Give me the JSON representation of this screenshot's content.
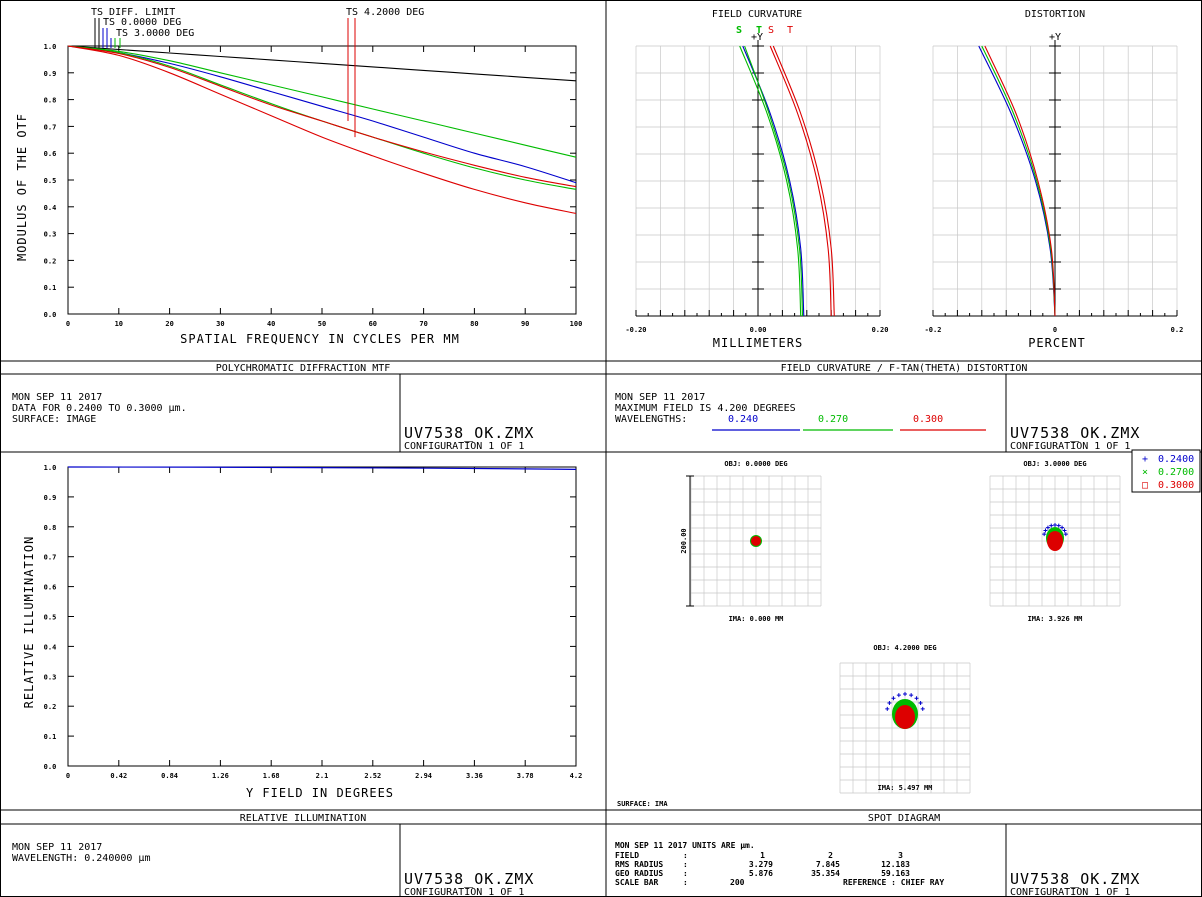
{
  "mtf_panel": {
    "title": "POLYCHROMATIC DIFFRACTION MTF",
    "ylabel": "MODULUS OF THE OTF",
    "xlabel": "SPATIAL FREQUENCY IN CYCLES PER MM",
    "legend": [
      "TS DIFF. LIMIT",
      "TS 0.0000 DEG",
      "TS 3.0000 DEG",
      "TS 4.2000 DEG"
    ],
    "info": [
      "MON SEP 11 2017",
      "DATA FOR 0.2400 TO 0.3000 µm.",
      "SURFACE: IMAGE"
    ],
    "file": "UV7538_OK.ZMX",
    "config": "CONFIGURATION 1 OF 1"
  },
  "fc_panel": {
    "title": "FIELD CURVATURE / F-TAN(THETA) DISTORTION",
    "fc_title": "FIELD CURVATURE",
    "dist_title": "DISTORTION",
    "fc_xlabel": "MILLIMETERS",
    "dist_xlabel": "PERCENT",
    "y_axis_label": "+Y",
    "fc_st_labels": [
      "S",
      "T",
      "S",
      "T"
    ],
    "info": [
      "MON SEP 11 2017",
      "MAXIMUM FIELD IS 4.200 DEGREES",
      "WAVELENGTHS:"
    ],
    "wavelengths": [
      "0.240",
      "0.270",
      "0.300"
    ],
    "file": "UV7538_OK.ZMX",
    "config": "CONFIGURATION 1 OF 1"
  },
  "ri_panel": {
    "title": "RELATIVE ILLUMINATION",
    "ylabel": "RELATIVE ILLUMINATION",
    "xlabel": "Y FIELD IN DEGREES",
    "info": [
      "MON SEP 11 2017",
      "WAVELENGTH: 0.240000 µm"
    ],
    "file": "UV7538_OK.ZMX",
    "config": "CONFIGURATION 1 OF 1"
  },
  "spot_panel": {
    "title": "SPOT DIAGRAM",
    "surface": "SURFACE: IMA",
    "scale_label": "200.00",
    "spots": [
      {
        "obj": "OBJ: 0.0000 DEG",
        "ima": "IMA: 0.000 MM"
      },
      {
        "obj": "OBJ: 3.0000 DEG",
        "ima": "IMA: 3.926 MM"
      },
      {
        "obj": "OBJ: 4.2000 DEG",
        "ima": "IMA: 5.497 MM"
      }
    ],
    "legend": [
      {
        "sym": "+",
        "label": "0.2400",
        "color": "#0000cc"
      },
      {
        "sym": "×",
        "label": "0.2700",
        "color": "#00bb00"
      },
      {
        "sym": "□",
        "label": "0.3000",
        "color": "#dd0000"
      }
    ],
    "info_line": "MON SEP 11 2017   UNITS ARE µm.",
    "table": [
      {
        "label": "FIELD",
        "values": [
          "1",
          "2",
          "3"
        ]
      },
      {
        "label": "RMS RADIUS",
        "values": [
          "3.279",
          "7.845",
          "12.183"
        ]
      },
      {
        "label": "GEO RADIUS",
        "values": [
          "5.876",
          "35.354",
          "59.163"
        ]
      }
    ],
    "scale_row": {
      "label": "SCALE BAR",
      "value": "200",
      "reference": "REFERENCE  : CHIEF RAY"
    },
    "file": "UV7538_OK.ZMX",
    "config": "CONFIGURATION 1 OF 1"
  },
  "colors": {
    "blue": "#0000cc",
    "green": "#00bb00",
    "red": "#dd0000",
    "black": "#000000"
  },
  "chart_data": [
    {
      "type": "line",
      "title": "POLYCHROMATIC DIFFRACTION MTF",
      "xlabel": "SPATIAL FREQUENCY IN CYCLES PER MM",
      "ylabel": "MODULUS OF THE OTF",
      "xlim": [
        0,
        100
      ],
      "ylim": [
        0,
        1
      ],
      "xticks": [
        "0",
        "10",
        "20",
        "30",
        "40",
        "50",
        "60",
        "70",
        "80",
        "90",
        "100"
      ],
      "yticks": [
        "0.0",
        "0.1",
        "0.2",
        "0.3",
        "0.4",
        "0.5",
        "0.6",
        "0.7",
        "0.8",
        "0.9",
        "1.0"
      ],
      "x": [
        0,
        10,
        20,
        30,
        40,
        50,
        60,
        70,
        80,
        90,
        100
      ],
      "series": [
        {
          "name": "TS DIFF. LIMIT",
          "color": "#000000",
          "values": [
            1.0,
            0.987,
            0.974,
            0.961,
            0.948,
            0.935,
            0.922,
            0.909,
            0.896,
            0.883,
            0.87
          ]
        },
        {
          "name": "TS 0.0000 DEG",
          "color": "#0000cc",
          "values": [
            1.0,
            0.975,
            0.935,
            0.885,
            0.83,
            0.775,
            0.72,
            0.66,
            0.6,
            0.55,
            0.49
          ]
        },
        {
          "color": "#00bb00",
          "values": [
            1.0,
            0.98,
            0.945,
            0.9,
            0.855,
            0.81,
            0.765,
            0.72,
            0.675,
            0.63,
            0.585
          ]
        },
        {
          "color": "#00bb00",
          "values": [
            1.0,
            0.975,
            0.925,
            0.855,
            0.785,
            0.72,
            0.66,
            0.6,
            0.545,
            0.5,
            0.465
          ]
        },
        {
          "name": "TS 3.0000 DEG",
          "color": "#dd0000",
          "values": [
            1.0,
            0.972,
            0.92,
            0.85,
            0.78,
            0.72,
            0.66,
            0.605,
            0.555,
            0.51,
            0.475
          ]
        },
        {
          "name": "TS 4.2000 DEG",
          "color": "#dd0000",
          "values": [
            1.0,
            0.965,
            0.9,
            0.82,
            0.74,
            0.66,
            0.59,
            0.525,
            0.465,
            0.415,
            0.375
          ]
        }
      ],
      "markers": [
        {
          "x": 55,
          "label": "TS 4.2000 DEG"
        }
      ]
    },
    {
      "type": "line",
      "title": "FIELD CURVATURE",
      "xlabel": "MILLIMETERS",
      "xlim": [
        -0.2,
        0.2
      ],
      "ylim": [
        0,
        4.2
      ],
      "xticks": [
        "-0.20",
        "0.00",
        "0.20"
      ],
      "y": [
        0,
        1.05,
        2.1,
        3.15,
        4.2
      ],
      "series": [
        {
          "name": "S",
          "color": "#0000cc",
          "x": [
            0.075,
            0.07,
            0.052,
            0.02,
            -0.025
          ]
        },
        {
          "color": "#00bb00",
          "x": [
            0.07,
            0.065,
            0.047,
            0.015,
            -0.03
          ]
        },
        {
          "color": "#00bb00",
          "x": [
            0.073,
            0.068,
            0.05,
            0.018,
            -0.022
          ]
        },
        {
          "name": "T",
          "color": "#dd0000",
          "x": [
            0.12,
            0.115,
            0.097,
            0.065,
            0.02
          ]
        },
        {
          "color": "#dd0000",
          "x": [
            0.125,
            0.12,
            0.102,
            0.07,
            0.025
          ]
        }
      ]
    },
    {
      "type": "line",
      "title": "DISTORTION",
      "xlabel": "PERCENT",
      "xlim": [
        -0.2,
        0.2
      ],
      "ylim": [
        0,
        4.2
      ],
      "xticks": [
        "-0.2",
        "0",
        "0.2"
      ],
      "y": [
        0,
        1.05,
        2.1,
        3.15,
        4.2
      ],
      "series": [
        {
          "color": "#0000cc",
          "x": [
            0,
            -0.008,
            -0.032,
            -0.072,
            -0.125
          ]
        },
        {
          "color": "#00bb00",
          "x": [
            0,
            -0.007,
            -0.03,
            -0.068,
            -0.12
          ]
        },
        {
          "color": "#dd0000",
          "x": [
            0,
            -0.006,
            -0.028,
            -0.064,
            -0.115
          ]
        }
      ]
    },
    {
      "type": "line",
      "title": "RELATIVE ILLUMINATION",
      "xlabel": "Y FIELD IN DEGREES",
      "ylabel": "RELATIVE ILLUMINATION",
      "xlim": [
        0,
        4.2
      ],
      "ylim": [
        0,
        1
      ],
      "xticks": [
        "0",
        "0.42",
        "0.84",
        "1.26",
        "1.68",
        "2.1",
        "2.52",
        "2.94",
        "3.36",
        "3.78",
        "4.2"
      ],
      "yticks": [
        "0.0",
        "0.1",
        "0.2",
        "0.3",
        "0.4",
        "0.5",
        "0.6",
        "0.7",
        "0.8",
        "0.9",
        "1.0"
      ],
      "x": [
        0,
        1,
        2,
        3,
        4,
        4.2
      ],
      "series": [
        {
          "color": "#0000cc",
          "values": [
            1.0,
            0.9995,
            0.998,
            0.996,
            0.993,
            0.992
          ]
        }
      ]
    }
  ]
}
